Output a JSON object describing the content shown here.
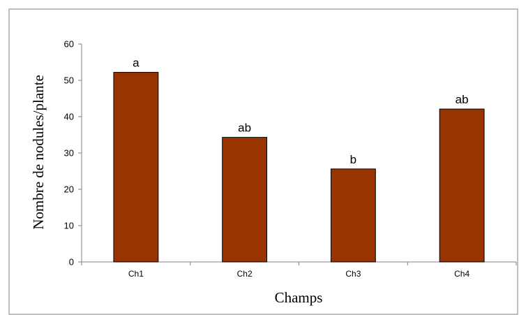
{
  "chart_data": {
    "type": "bar",
    "categories": [
      "Ch1",
      "Ch2",
      "Ch3",
      "Ch4"
    ],
    "values": [
      52.2,
      34.3,
      25.6,
      42.1
    ],
    "data_labels": [
      "a",
      "ab",
      "b",
      "ab"
    ],
    "title": "",
    "xlabel": "Champs",
    "ylabel": "Nombre de nodules/plante",
    "ylim": [
      0,
      60
    ],
    "yticks": [
      0,
      10,
      20,
      30,
      40,
      50,
      60
    ],
    "grid": false,
    "legend": "none",
    "bar_color": "#993300",
    "bar_edge_color": "#000000"
  }
}
